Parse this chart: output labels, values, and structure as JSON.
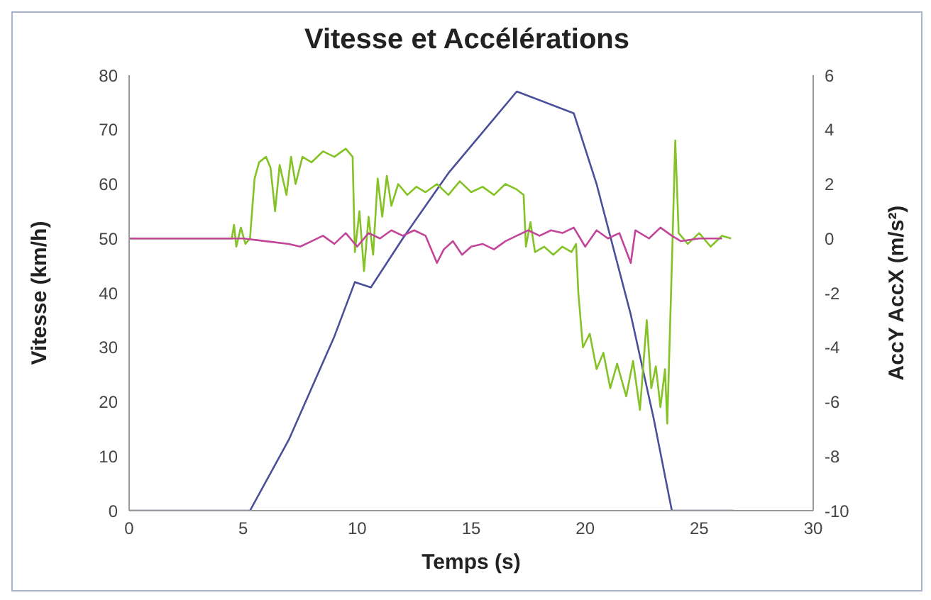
{
  "chart_data": {
    "type": "line",
    "title": "Vitesse et Accélérations",
    "xlabel": "Temps (s)",
    "ylabel": "Vitesse (km/h)",
    "y2label": "AccY  AccX (m/s²)",
    "xlim": [
      0,
      30
    ],
    "xticks": [
      0,
      5,
      10,
      15,
      20,
      25,
      30
    ],
    "ylim": [
      0,
      80
    ],
    "yticks": [
      0,
      10,
      20,
      30,
      40,
      50,
      60,
      70,
      80
    ],
    "y2lim": [
      -10,
      6
    ],
    "y2ticks": [
      -10,
      -8,
      -6,
      -4,
      -2,
      0,
      2,
      4,
      6
    ],
    "legend": false,
    "marker": "none",
    "line_style": "solid",
    "series": [
      {
        "color": "#4b4f9a",
        "x": [
          0,
          5.3,
          7,
          9,
          9.9,
          10.6,
          12,
          14,
          16,
          17,
          19.5,
          20.5,
          22,
          23,
          23.8,
          26.5
        ],
        "values": [
          0,
          0,
          13,
          32,
          42,
          41,
          50,
          62,
          72,
          77,
          73,
          60,
          36,
          17,
          0,
          0
        ]
      },
      {
        "color": "#84c225",
        "axis": "y2",
        "x": [
          0,
          4.5,
          4.6,
          4.7,
          4.9,
          5.1,
          5.3,
          5.5,
          5.7,
          6.0,
          6.2,
          6.4,
          6.6,
          6.9,
          7.1,
          7.3,
          7.6,
          8,
          8.5,
          9,
          9.5,
          9.8,
          9.9,
          10.1,
          10.3,
          10.5,
          10.7,
          10.9,
          11.1,
          11.3,
          11.5,
          11.8,
          12.2,
          12.6,
          13,
          13.5,
          14,
          14.5,
          15,
          15.5,
          16,
          16.5,
          17,
          17.3,
          17.4,
          17.6,
          17.8,
          18.2,
          18.6,
          19,
          19.4,
          19.6,
          19.7,
          19.9,
          20.2,
          20.5,
          20.8,
          21.1,
          21.4,
          21.8,
          22.1,
          22.4,
          22.7,
          22.9,
          23.1,
          23.3,
          23.5,
          23.6,
          23.8,
          23.95,
          24.1,
          24.5,
          25,
          25.5,
          26,
          26.4
        ],
        "values": [
          0,
          0,
          0.5,
          -0.3,
          0.4,
          -0.2,
          0,
          2.2,
          2.8,
          3.0,
          2.6,
          1.0,
          2.7,
          1.6,
          3.0,
          2.0,
          3.0,
          2.8,
          3.2,
          3.0,
          3.3,
          3.0,
          -0.5,
          1.0,
          -1.2,
          0.8,
          -0.6,
          2.2,
          0.8,
          2.3,
          1.2,
          2.0,
          1.6,
          1.9,
          1.7,
          2.0,
          1.6,
          2.1,
          1.7,
          1.9,
          1.6,
          2.0,
          1.8,
          1.6,
          -0.3,
          0.6,
          -0.5,
          -0.3,
          -0.6,
          -0.3,
          -0.5,
          -0.2,
          -2.0,
          -4.0,
          -3.5,
          -4.8,
          -4.2,
          -5.5,
          -4.6,
          -5.8,
          -4.5,
          -6.3,
          -3.0,
          -5.5,
          -4.7,
          -6.2,
          -4.8,
          -6.8,
          -1,
          3.6,
          0.2,
          -0.2,
          0.2,
          -0.3,
          0.1,
          0
        ]
      },
      {
        "color": "#c2459a",
        "axis": "y2",
        "x": [
          0,
          5,
          6,
          7,
          7.5,
          8,
          8.5,
          9,
          9.5,
          10,
          10.5,
          11,
          11.5,
          12,
          12.5,
          13,
          13.5,
          13.8,
          14.2,
          14.6,
          15,
          15.5,
          16,
          16.5,
          17,
          17.5,
          18,
          18.5,
          19,
          19.5,
          20,
          20.5,
          21,
          21.5,
          22,
          22.2,
          22.8,
          23.3,
          23.8,
          24.2,
          25,
          26
        ],
        "values": [
          0,
          0,
          -0.1,
          -0.2,
          -0.3,
          -0.1,
          0.1,
          -0.2,
          0.2,
          -0.3,
          0.2,
          0,
          0.3,
          0.1,
          0.3,
          0.1,
          -0.9,
          -0.4,
          -0.1,
          -0.6,
          -0.3,
          -0.2,
          -0.4,
          -0.1,
          0.1,
          0.3,
          0.1,
          0.3,
          0.2,
          0.4,
          -0.3,
          0.3,
          0,
          0.2,
          -0.9,
          0.3,
          0,
          0.4,
          0.1,
          -0.1,
          0,
          0
        ]
      }
    ]
  }
}
